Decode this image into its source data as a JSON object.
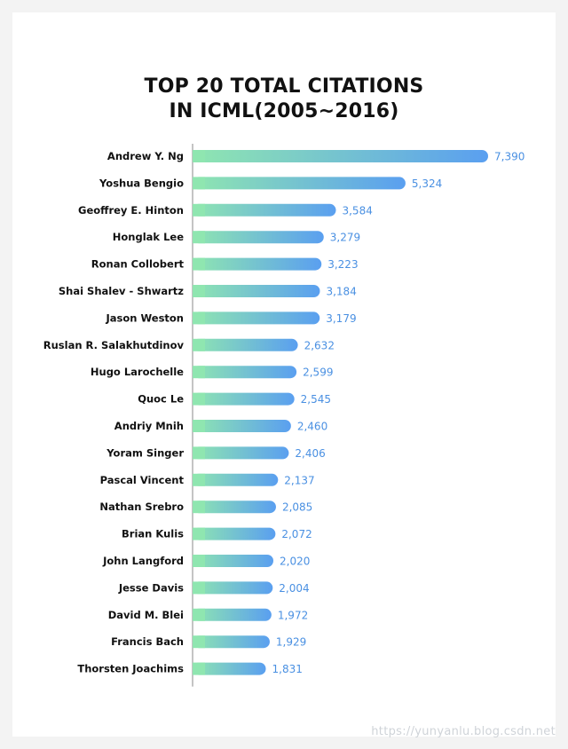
{
  "chart_data": {
    "type": "bar",
    "orientation": "horizontal",
    "title_lines": [
      "TOP 20 TOTAL CITATIONS",
      "IN ICML(2005~2016)"
    ],
    "categories": [
      "Andrew Y. Ng",
      "Yoshua Bengio",
      "Geoffrey E. Hinton",
      "Honglak Lee",
      "Ronan Collobert",
      "Shai Shalev - Shwartz",
      "Jason Weston",
      "Ruslan R. Salakhutdinov",
      "Hugo Larochelle",
      "Quoc Le",
      "Andriy Mnih",
      "Yoram Singer",
      "Pascal Vincent",
      "Nathan Srebro",
      "Brian Kulis",
      "John Langford",
      "Jesse Davis",
      "David M. Blei",
      "Francis Bach",
      "Thorsten Joachims"
    ],
    "values": [
      7390,
      5324,
      3584,
      3279,
      3223,
      3184,
      3179,
      2632,
      2599,
      2545,
      2460,
      2406,
      2137,
      2085,
      2072,
      2020,
      2004,
      1972,
      1929,
      1831
    ],
    "value_labels": [
      "7,390",
      "5,324",
      "3,584",
      "3,279",
      "3,223",
      "3,184",
      "3,179",
      "2,632",
      "2,599",
      "2,545",
      "2,460",
      "2,406",
      "2,137",
      "2,085",
      "2,072",
      "2,020",
      "2,004",
      "1,972",
      "1,929",
      "1,831"
    ],
    "xlim": [
      0,
      7390
    ],
    "grid": false,
    "legend": "none",
    "colors": {
      "bar_start": "#8fe6b0",
      "bar_end": "#5a9ff0",
      "value_label": "#4a90e2",
      "category_label": "#111111",
      "axis": "#8a8a8a"
    }
  },
  "watermark": "https://yunyanlu.blog.csdn.net"
}
